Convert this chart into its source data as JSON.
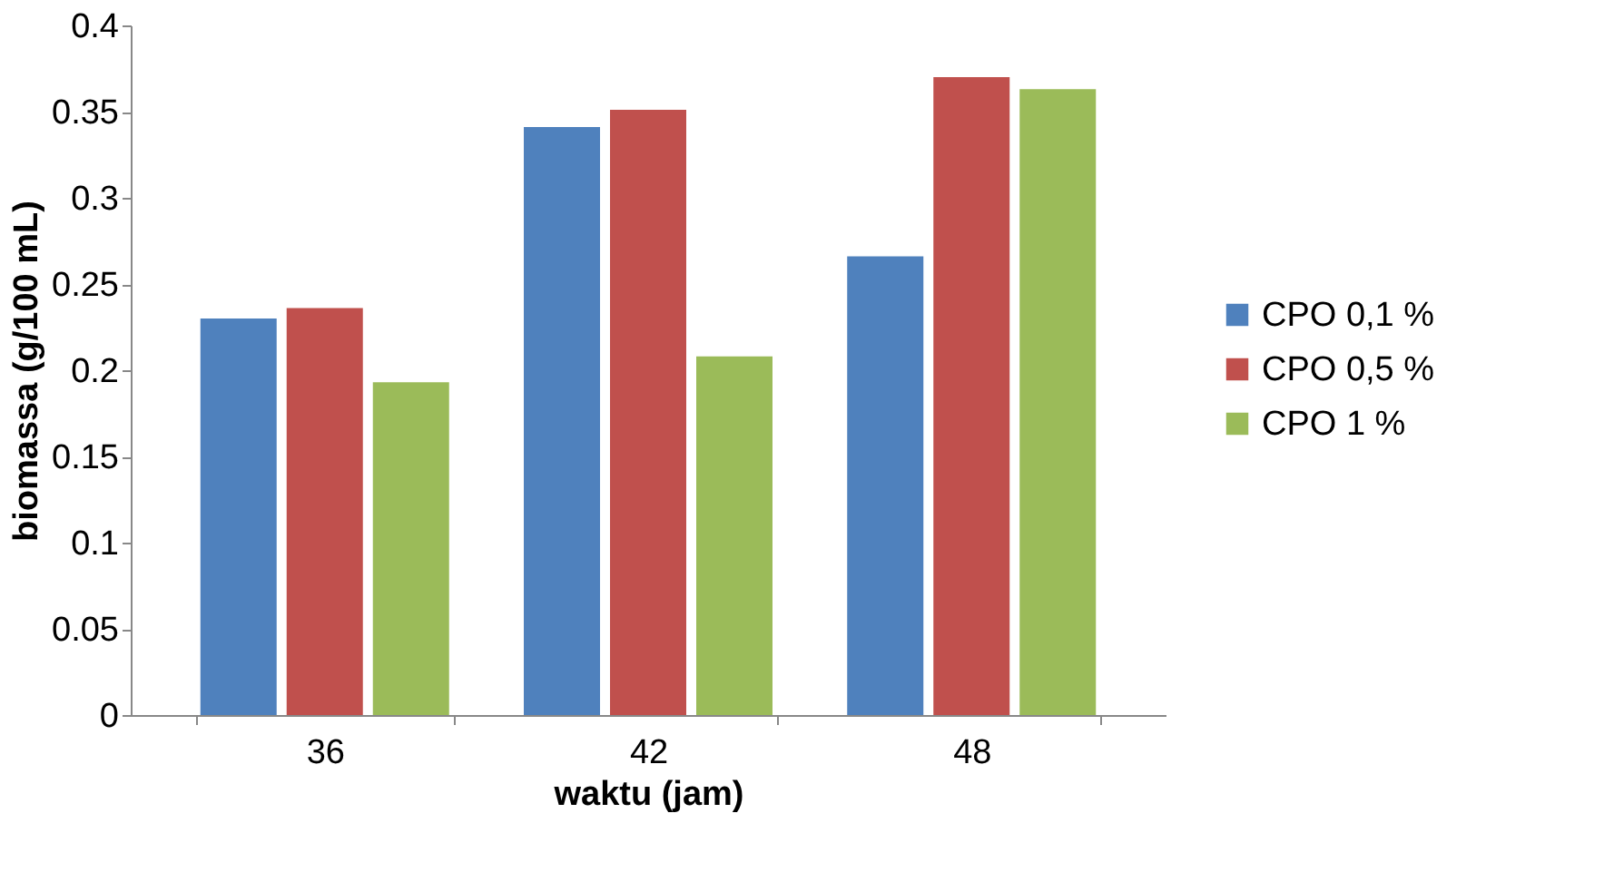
{
  "chart_data": {
    "type": "bar",
    "xlabel": "waktu (jam)",
    "ylabel": "biomassa (g/100 mL)",
    "categories": [
      "36",
      "42",
      "48"
    ],
    "series": [
      {
        "name": "CPO 0,1 %",
        "color": "#4f81bd",
        "values": [
          0.23,
          0.341,
          0.266
        ]
      },
      {
        "name": "CPO 0,5 %",
        "color": "#c0504d",
        "values": [
          0.236,
          0.351,
          0.37
        ]
      },
      {
        "name": "CPO 1 %",
        "color": "#9bbb59",
        "values": [
          0.193,
          0.208,
          0.363
        ]
      }
    ],
    "ylim": [
      0,
      0.4
    ],
    "yticks": [
      0,
      0.05,
      0.1,
      0.15,
      0.2,
      0.25,
      0.3,
      0.35,
      0.4
    ],
    "grid": false,
    "legend": "right"
  }
}
